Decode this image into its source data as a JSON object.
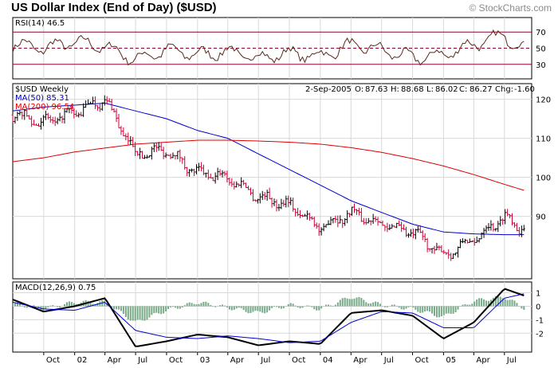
{
  "header": {
    "title": "US Dollar Index (End of Day) ($USD)",
    "copyright": "© StockCharts.com"
  },
  "colors": {
    "price_up": "#000000",
    "price_down": "#cc0033",
    "ma50": "#0000cc",
    "ma200": "#dd0000",
    "rsi_band": "#8b0033",
    "rsi_fill": "#b87a4a",
    "macd_line": "#000000",
    "macd_signal": "#0000cc",
    "histogram": "#77aa88",
    "grid": "#d8d8d8"
  },
  "chart_data": [
    {
      "type": "line",
      "panel": "rsi",
      "label": "RSI(14) 46.5",
      "levels": [
        70,
        50,
        30
      ],
      "ylim": [
        12,
        88
      ],
      "x": [
        "2001-07-01",
        "2001-10-01",
        "2002-01-01",
        "2002-04-01",
        "2002-07-01",
        "2002-10-01",
        "2003-01-01",
        "2003-04-01",
        "2003-07-01",
        "2003-10-01",
        "2004-01-01",
        "2004-04-01",
        "2004-07-01",
        "2004-10-01",
        "2005-01-01",
        "2005-04-01",
        "2005-07-01",
        "2005-09-02"
      ],
      "values": [
        55,
        50,
        58,
        52,
        36,
        48,
        42,
        46,
        38,
        44,
        40,
        54,
        48,
        38,
        42,
        55,
        66,
        46.5
      ]
    },
    {
      "type": "candlestick",
      "panel": "price",
      "label": "$USD Weekly",
      "last_bar": {
        "date": "2-Sep-2005",
        "open": "87.63",
        "high": "88.68",
        "low": "86.02",
        "close": "86.27",
        "change": "-1.60"
      },
      "ylim": [
        74,
        124
      ],
      "yticks": [
        90,
        100,
        110,
        120
      ],
      "x": [
        "2001-07-01",
        "2001-10-01",
        "2002-01-01",
        "2002-04-01",
        "2002-07-01",
        "2002-10-01",
        "2003-01-01",
        "2003-04-01",
        "2003-07-01",
        "2003-10-01",
        "2004-01-01",
        "2004-04-01",
        "2004-07-01",
        "2004-10-01",
        "2005-01-01",
        "2005-04-01",
        "2005-07-01",
        "2005-09-02"
      ],
      "close": [
        116,
        114,
        116.5,
        120,
        106,
        107,
        101,
        100,
        95,
        93,
        87,
        91,
        88,
        86,
        80,
        84,
        90,
        86.3
      ],
      "series": [
        {
          "name": "MA(50) 85.31",
          "values": [
            117,
            118,
            118.5,
            119,
            117,
            115,
            112,
            110,
            106,
            102,
            98,
            94,
            91,
            88,
            86,
            85.5,
            85.3,
            85.31
          ]
        },
        {
          "name": "MA(200) 96.54",
          "values": [
            104,
            105,
            106.5,
            107.5,
            108.5,
            109,
            109.5,
            109.5,
            109.3,
            109,
            108.5,
            107.6,
            106.4,
            104.8,
            102.9,
            100.7,
            98.2,
            96.54
          ]
        }
      ]
    },
    {
      "type": "line",
      "panel": "macd",
      "label": "MACD(12,26,9) 0.75",
      "ylim": [
        -3.4,
        1.8
      ],
      "yticks": [
        1,
        0,
        -1,
        -2
      ],
      "x": [
        "2001-07-01",
        "2001-10-01",
        "2002-01-01",
        "2002-04-01",
        "2002-07-01",
        "2002-10-01",
        "2003-01-01",
        "2003-04-01",
        "2003-07-01",
        "2003-10-01",
        "2004-01-01",
        "2004-04-01",
        "2004-07-01",
        "2004-10-01",
        "2005-01-01",
        "2005-04-01",
        "2005-07-01",
        "2005-09-02"
      ],
      "series": [
        {
          "name": "MACD",
          "values": [
            0.5,
            -0.4,
            0.0,
            0.6,
            -3.0,
            -2.6,
            -2.1,
            -2.3,
            -2.9,
            -2.6,
            -2.8,
            -0.5,
            -0.3,
            -0.7,
            -2.4,
            -1.2,
            1.3,
            0.75
          ]
        },
        {
          "name": "Signal",
          "values": [
            0.3,
            -0.2,
            -0.3,
            0.3,
            -1.8,
            -2.3,
            -2.4,
            -2.2,
            -2.4,
            -2.7,
            -2.6,
            -1.2,
            -0.4,
            -0.5,
            -1.6,
            -1.6,
            0.6,
            0.95
          ]
        }
      ],
      "histogram": [
        0.2,
        -0.2,
        0.3,
        0.3,
        -1.2,
        -0.3,
        0.3,
        -0.1,
        -0.5,
        0.1,
        -0.2,
        0.7,
        0.1,
        -0.2,
        -0.8,
        0.4,
        0.7,
        -0.2
      ]
    }
  ],
  "x_axis": {
    "labels": [
      "Oct",
      "02",
      "Apr",
      "Jul",
      "Oct",
      "03",
      "Apr",
      "Jul",
      "Oct",
      "04",
      "Apr",
      "Jul",
      "Oct",
      "05",
      "Apr",
      "Jul"
    ],
    "dates": [
      "2001-10-01",
      "2002-01-01",
      "2002-04-01",
      "2002-07-01",
      "2002-10-01",
      "2003-01-01",
      "2003-04-01",
      "2003-07-01",
      "2003-10-01",
      "2004-01-01",
      "2004-04-01",
      "2004-07-01",
      "2004-10-01",
      "2005-01-01",
      "2005-04-01",
      "2005-07-01"
    ]
  },
  "rsi_axis": {
    "labels": [
      "70",
      "50",
      "30"
    ]
  }
}
